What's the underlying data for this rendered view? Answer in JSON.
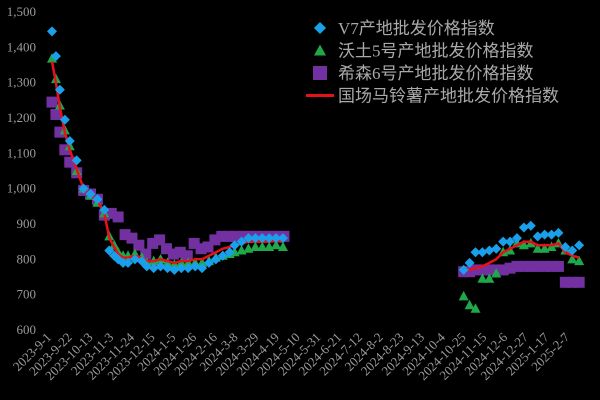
{
  "chart_data": {
    "type": "scatter",
    "title": "",
    "xlabel": "",
    "ylabel": "",
    "ylim": [
      600,
      1500
    ],
    "xlim": [
      "2023-09-01",
      "2025-03-01"
    ],
    "yticks": [
      600,
      700,
      800,
      900,
      1000,
      1100,
      1200,
      1300,
      1400,
      1500
    ],
    "ytick_labels": [
      "600",
      "700",
      "800",
      "900",
      "1,000",
      "1,100",
      "1,200",
      "1,300",
      "1,400",
      "1,500"
    ],
    "xticks": [
      "2023-09-01",
      "2023-09-22",
      "2023-10-13",
      "2023-11-03",
      "2023-11-24",
      "2023-12-15",
      "2024-01-05",
      "2024-01-26",
      "2024-02-16",
      "2024-03-08",
      "2024-03-29",
      "2024-04-19",
      "2024-05-10",
      "2024-05-31",
      "2024-06-21",
      "2024-07-12",
      "2024-08-02",
      "2024-08-23",
      "2024-09-13",
      "2024-10-04",
      "2024-10-25",
      "2024-11-15",
      "2024-12-06",
      "2024-12-27",
      "2025-01-17",
      "2025-02-07"
    ],
    "xtick_labels": [
      "2023-9-1",
      "2023-9-22",
      "2023-10-13",
      "2023-11-3",
      "2023-11-24",
      "2023-12-15",
      "2024-1-5",
      "2024-1-26",
      "2024-2-16",
      "2024-3-8",
      "2024-3-29",
      "2024-4-19",
      "2024-5-10",
      "2024-5-31",
      "2024-6-21",
      "2024-7-12",
      "2024-8-2",
      "2024-8-23",
      "2024-9-13",
      "2024-10-4",
      "2024-10-25",
      "2024-11-15",
      "2024-12-6",
      "2024-12-27",
      "2025-1-17",
      "2025-2-7"
    ],
    "grid": false,
    "legend_position": "top-right",
    "background": "#000000",
    "series": [
      {
        "name": "V7产地批发价格指数",
        "marker": "diamond",
        "color": "#1aa0ea",
        "points": [
          [
            "2023-09-01",
            1445
          ],
          [
            "2023-09-05",
            1375
          ],
          [
            "2023-09-09",
            1280
          ],
          [
            "2023-09-14",
            1195
          ],
          [
            "2023-09-19",
            1135
          ],
          [
            "2023-09-26",
            1080
          ],
          [
            "2023-10-03",
            1000
          ],
          [
            "2023-10-10",
            985
          ],
          [
            "2023-10-17",
            970
          ],
          [
            "2023-10-24",
            940
          ],
          [
            "2023-10-29",
            825
          ],
          [
            "2023-11-03",
            810
          ],
          [
            "2023-11-07",
            800
          ],
          [
            "2023-11-12",
            790
          ],
          [
            "2023-11-17",
            790
          ],
          [
            "2023-11-24",
            800
          ],
          [
            "2023-12-01",
            795
          ],
          [
            "2023-12-06",
            780
          ],
          [
            "2023-12-13",
            775
          ],
          [
            "2023-12-20",
            780
          ],
          [
            "2023-12-27",
            775
          ],
          [
            "2024-01-03",
            770
          ],
          [
            "2024-01-10",
            775
          ],
          [
            "2024-01-17",
            775
          ],
          [
            "2024-01-24",
            780
          ],
          [
            "2024-01-31",
            775
          ],
          [
            "2024-02-07",
            790
          ],
          [
            "2024-02-14",
            800
          ],
          [
            "2024-02-21",
            810
          ],
          [
            "2024-02-28",
            820
          ],
          [
            "2024-03-04",
            840
          ],
          [
            "2024-03-11",
            850
          ],
          [
            "2024-03-18",
            860
          ],
          [
            "2024-03-25",
            860
          ],
          [
            "2024-04-01",
            860
          ],
          [
            "2024-04-08",
            860
          ],
          [
            "2024-04-15",
            860
          ],
          [
            "2024-04-22",
            860
          ],
          [
            "2024-10-22",
            770
          ],
          [
            "2024-10-28",
            790
          ],
          [
            "2024-11-03",
            820
          ],
          [
            "2024-11-10",
            820
          ],
          [
            "2024-11-17",
            825
          ],
          [
            "2024-11-24",
            830
          ],
          [
            "2024-12-01",
            850
          ],
          [
            "2024-12-08",
            850
          ],
          [
            "2024-12-15",
            860
          ],
          [
            "2024-12-22",
            890
          ],
          [
            "2024-12-29",
            895
          ],
          [
            "2025-01-05",
            865
          ],
          [
            "2025-01-12",
            870
          ],
          [
            "2025-01-19",
            870
          ],
          [
            "2025-01-26",
            875
          ],
          [
            "2025-02-02",
            835
          ],
          [
            "2025-02-09",
            825
          ],
          [
            "2025-02-16",
            840
          ]
        ]
      },
      {
        "name": "沃土5号产地批发价格指数",
        "marker": "triangle",
        "color": "#1fa84a",
        "points": [
          [
            "2023-09-01",
            1368
          ],
          [
            "2023-09-05",
            1310
          ],
          [
            "2023-09-09",
            1235
          ],
          [
            "2023-09-14",
            1165
          ],
          [
            "2023-09-19",
            1120
          ],
          [
            "2023-09-26",
            1050
          ],
          [
            "2023-10-03",
            1000
          ],
          [
            "2023-10-10",
            980
          ],
          [
            "2023-10-17",
            960
          ],
          [
            "2023-10-24",
            930
          ],
          [
            "2023-10-29",
            865
          ],
          [
            "2023-11-03",
            840
          ],
          [
            "2023-11-07",
            820
          ],
          [
            "2023-11-12",
            810
          ],
          [
            "2023-11-17",
            810
          ],
          [
            "2023-11-24",
            815
          ],
          [
            "2023-12-01",
            805
          ],
          [
            "2023-12-06",
            790
          ],
          [
            "2023-12-13",
            795
          ],
          [
            "2023-12-20",
            800
          ],
          [
            "2023-12-27",
            790
          ],
          [
            "2024-01-03",
            785
          ],
          [
            "2024-01-10",
            790
          ],
          [
            "2024-01-17",
            790
          ],
          [
            "2024-01-24",
            790
          ],
          [
            "2024-01-31",
            790
          ],
          [
            "2024-02-07",
            795
          ],
          [
            "2024-02-14",
            805
          ],
          [
            "2024-02-21",
            810
          ],
          [
            "2024-02-28",
            815
          ],
          [
            "2024-03-04",
            820
          ],
          [
            "2024-03-11",
            825
          ],
          [
            "2024-03-18",
            830
          ],
          [
            "2024-03-25",
            835
          ],
          [
            "2024-04-01",
            835
          ],
          [
            "2024-04-08",
            835
          ],
          [
            "2024-04-15",
            840
          ],
          [
            "2024-04-22",
            835
          ],
          [
            "2024-10-22",
            695
          ],
          [
            "2024-10-28",
            670
          ],
          [
            "2024-11-03",
            660
          ],
          [
            "2024-11-10",
            745
          ],
          [
            "2024-11-17",
            745
          ],
          [
            "2024-11-24",
            760
          ],
          [
            "2024-12-01",
            820
          ],
          [
            "2024-12-08",
            825
          ],
          [
            "2024-12-15",
            845
          ],
          [
            "2024-12-22",
            840
          ],
          [
            "2024-12-29",
            845
          ],
          [
            "2025-01-05",
            830
          ],
          [
            "2025-01-12",
            830
          ],
          [
            "2025-01-19",
            835
          ],
          [
            "2025-01-26",
            845
          ],
          [
            "2025-02-02",
            825
          ],
          [
            "2025-02-09",
            800
          ],
          [
            "2025-02-16",
            795
          ]
        ]
      },
      {
        "name": "希森6号产地批发价格指数",
        "marker": "square",
        "color": "#7230a0",
        "points": [
          [
            "2023-09-01",
            1245
          ],
          [
            "2023-09-05",
            1210
          ],
          [
            "2023-09-09",
            1160
          ],
          [
            "2023-09-14",
            1110
          ],
          [
            "2023-09-19",
            1075
          ],
          [
            "2023-09-26",
            1045
          ],
          [
            "2023-10-03",
            995
          ],
          [
            "2023-10-10",
            985
          ],
          [
            "2023-10-17",
            970
          ],
          [
            "2023-10-24",
            925
          ],
          [
            "2023-10-31",
            930
          ],
          [
            "2023-11-07",
            920
          ],
          [
            "2023-11-14",
            870
          ],
          [
            "2023-11-21",
            860
          ],
          [
            "2023-11-28",
            840
          ],
          [
            "2023-12-05",
            815
          ],
          [
            "2023-12-12",
            845
          ],
          [
            "2023-12-19",
            855
          ],
          [
            "2023-12-26",
            830
          ],
          [
            "2024-01-02",
            815
          ],
          [
            "2024-01-09",
            820
          ],
          [
            "2024-01-16",
            810
          ],
          [
            "2024-01-23",
            845
          ],
          [
            "2024-01-30",
            830
          ],
          [
            "2024-02-06",
            835
          ],
          [
            "2024-02-13",
            855
          ],
          [
            "2024-02-20",
            865
          ],
          [
            "2024-02-27",
            865
          ],
          [
            "2024-03-05",
            865
          ],
          [
            "2024-03-12",
            865
          ],
          [
            "2024-03-19",
            865
          ],
          [
            "2024-03-26",
            865
          ],
          [
            "2024-04-02",
            865
          ],
          [
            "2024-04-09",
            865
          ],
          [
            "2024-04-16",
            865
          ],
          [
            "2024-04-23",
            865
          ],
          [
            "2024-10-22",
            765
          ],
          [
            "2024-10-28",
            765
          ],
          [
            "2024-11-03",
            770
          ],
          [
            "2024-11-10",
            770
          ],
          [
            "2024-11-17",
            770
          ],
          [
            "2024-11-24",
            770
          ],
          [
            "2024-12-01",
            770
          ],
          [
            "2024-12-08",
            775
          ],
          [
            "2024-12-15",
            780
          ],
          [
            "2024-12-22",
            780
          ],
          [
            "2024-12-29",
            780
          ],
          [
            "2025-01-05",
            780
          ],
          [
            "2025-01-12",
            780
          ],
          [
            "2025-01-19",
            780
          ],
          [
            "2025-01-26",
            780
          ],
          [
            "2025-02-02",
            735
          ],
          [
            "2025-02-09",
            735
          ],
          [
            "2025-02-16",
            735
          ]
        ]
      },
      {
        "name": "国场马铃薯产地批发价格指数",
        "marker": "line",
        "color": "#e8101a",
        "points": [
          [
            "2023-09-01",
            1360
          ],
          [
            "2023-09-05",
            1300
          ],
          [
            "2023-09-09",
            1230
          ],
          [
            "2023-09-14",
            1160
          ],
          [
            "2023-09-19",
            1110
          ],
          [
            "2023-09-26",
            1055
          ],
          [
            "2023-10-03",
            1000
          ],
          [
            "2023-10-10",
            980
          ],
          [
            "2023-10-17",
            965
          ],
          [
            "2023-10-24",
            930
          ],
          [
            "2023-10-29",
            860
          ],
          [
            "2023-11-03",
            835
          ],
          [
            "2023-11-07",
            815
          ],
          [
            "2023-11-12",
            805
          ],
          [
            "2023-11-17",
            805
          ],
          [
            "2023-11-24",
            810
          ],
          [
            "2023-12-01",
            805
          ],
          [
            "2023-12-06",
            795
          ],
          [
            "2023-12-13",
            795
          ],
          [
            "2023-12-20",
            800
          ],
          [
            "2023-12-27",
            795
          ],
          [
            "2024-01-03",
            790
          ],
          [
            "2024-01-10",
            795
          ],
          [
            "2024-01-17",
            795
          ],
          [
            "2024-01-24",
            800
          ],
          [
            "2024-01-31",
            800
          ],
          [
            "2024-02-07",
            810
          ],
          [
            "2024-02-14",
            820
          ],
          [
            "2024-02-21",
            830
          ],
          [
            "2024-02-28",
            835
          ],
          [
            "2024-03-04",
            840
          ],
          [
            "2024-03-11",
            845
          ],
          [
            "2024-03-18",
            850
          ],
          [
            "2024-03-25",
            850
          ],
          [
            "2024-04-01",
            850
          ],
          [
            "2024-04-08",
            850
          ],
          [
            "2024-04-15",
            852
          ],
          [
            "2024-04-22",
            850
          ],
          [
            "2024-10-22",
            770
          ],
          [
            "2024-10-28",
            770
          ],
          [
            "2024-11-03",
            775
          ],
          [
            "2024-11-10",
            780
          ],
          [
            "2024-11-17",
            790
          ],
          [
            "2024-11-24",
            800
          ],
          [
            "2024-12-01",
            820
          ],
          [
            "2024-12-08",
            830
          ],
          [
            "2024-12-15",
            840
          ],
          [
            "2024-12-22",
            850
          ],
          [
            "2024-12-29",
            850
          ],
          [
            "2025-01-05",
            840
          ],
          [
            "2025-01-12",
            840
          ],
          [
            "2025-01-19",
            840
          ],
          [
            "2025-01-26",
            845
          ],
          [
            "2025-02-02",
            820
          ],
          [
            "2025-02-09",
            810
          ],
          [
            "2025-02-16",
            805
          ]
        ]
      }
    ]
  }
}
